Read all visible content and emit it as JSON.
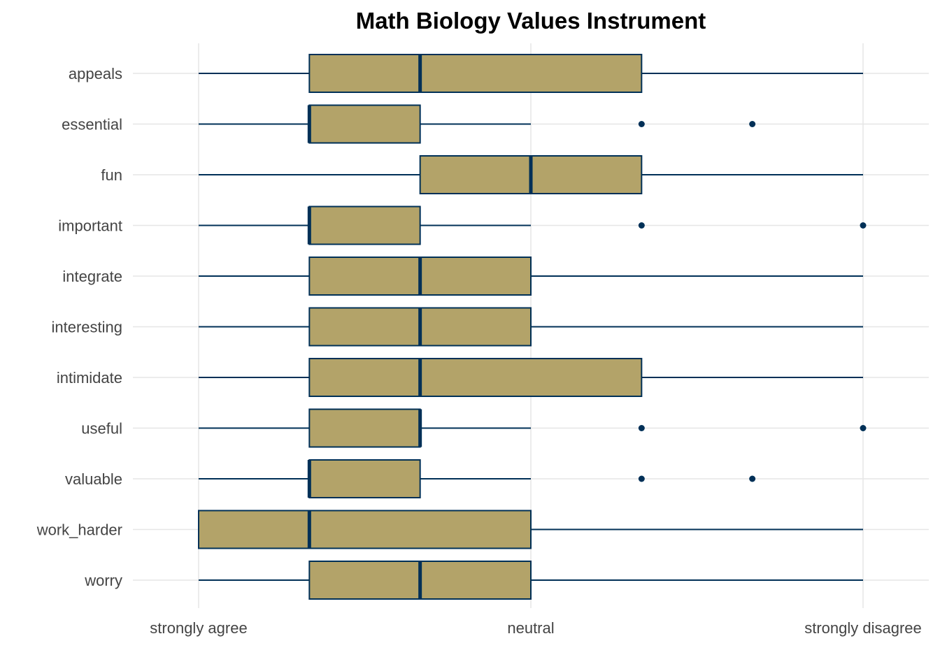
{
  "chart_data": {
    "type": "boxplot",
    "orientation": "horizontal",
    "title": "Math Biology Values Instrument",
    "xlabel": "",
    "ylabel": "",
    "x_scale": {
      "min": 1,
      "max": 7,
      "ticks": [
        {
          "value": 1,
          "label": "strongly agree"
        },
        {
          "value": 4,
          "label": "neutral"
        },
        {
          "value": 7,
          "label": "strongly disagree"
        }
      ]
    },
    "grid": true,
    "legend": "none",
    "colors": {
      "fill": "#b3a369",
      "stroke": "#003057",
      "grid": "#e6e6e6"
    },
    "items": [
      {
        "label": "appeals",
        "min": 1,
        "q1": 2,
        "median": 3,
        "q3": 5,
        "max": 7,
        "outliers": []
      },
      {
        "label": "essential",
        "min": 1,
        "q1": 2,
        "median": 2,
        "q3": 3,
        "max": 4,
        "outliers": [
          5,
          6
        ]
      },
      {
        "label": "fun",
        "min": 1,
        "q1": 3,
        "median": 4,
        "q3": 5,
        "max": 7,
        "outliers": []
      },
      {
        "label": "important",
        "min": 1,
        "q1": 2,
        "median": 2,
        "q3": 3,
        "max": 4,
        "outliers": [
          5,
          7
        ]
      },
      {
        "label": "integrate",
        "min": 1,
        "q1": 2,
        "median": 3,
        "q3": 4,
        "max": 7,
        "outliers": []
      },
      {
        "label": "interesting",
        "min": 1,
        "q1": 2,
        "median": 3,
        "q3": 4,
        "max": 7,
        "outliers": []
      },
      {
        "label": "intimidate",
        "min": 1,
        "q1": 2,
        "median": 3,
        "q3": 5,
        "max": 7,
        "outliers": []
      },
      {
        "label": "useful",
        "min": 1,
        "q1": 2,
        "median": 3,
        "q3": 3,
        "max": 4,
        "outliers": [
          5,
          7
        ]
      },
      {
        "label": "valuable",
        "min": 1,
        "q1": 2,
        "median": 2,
        "q3": 3,
        "max": 4,
        "outliers": [
          5,
          6
        ]
      },
      {
        "label": "work_harder",
        "min": 1,
        "q1": 1,
        "median": 2,
        "q3": 4,
        "max": 7,
        "outliers": []
      },
      {
        "label": "worry",
        "min": 1,
        "q1": 2,
        "median": 3,
        "q3": 4,
        "max": 7,
        "outliers": []
      }
    ]
  }
}
